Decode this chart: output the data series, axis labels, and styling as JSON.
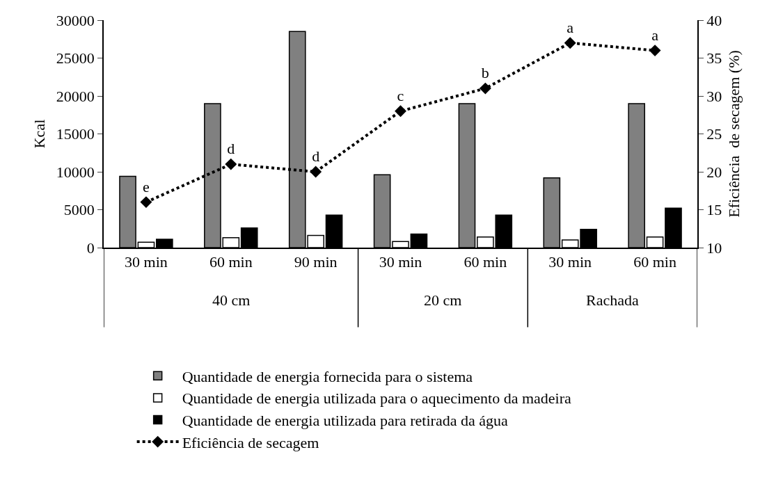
{
  "chart_data": {
    "type": "bar",
    "ylabel": "Kcal",
    "y2label": "Eficiência  de secagem (%)",
    "categories": [
      "30 min",
      "60 min",
      "90 min",
      "30 min",
      "60 min",
      "30 min",
      "60 min"
    ],
    "annotations": [
      "40 cm",
      "20 cm",
      "Rachada"
    ],
    "series": [
      {
        "name": "Quantidade de energia fornecida para o sistema",
        "color": "#808080",
        "values": [
          9400,
          19000,
          28500,
          9600,
          19000,
          9200,
          19000
        ]
      },
      {
        "name": "Quantidade de energia utilizada para o aquecimento da madeira",
        "color": "#ffffff",
        "values": [
          700,
          1300,
          1600,
          800,
          1400,
          1000,
          1400
        ]
      },
      {
        "name": "Quantidade de energia utilizada para retirada da água",
        "color": "#000000",
        "values": [
          1100,
          2600,
          4300,
          1800,
          4300,
          2400,
          5200
        ]
      },
      {
        "name": "Eficiência de secagem",
        "type": "line",
        "axis": "y2",
        "color": "#000000",
        "marker": "diamond",
        "line_style": "dotted",
        "values": [
          16,
          21,
          20,
          28,
          31,
          37,
          36
        ],
        "value_labels": [
          "e",
          "d",
          "d",
          "c",
          "b",
          "a",
          "a"
        ]
      }
    ],
    "ylim": [
      0,
      30000
    ],
    "yticks": [
      0,
      5000,
      10000,
      15000,
      20000,
      25000,
      30000
    ],
    "y2lim": [
      10,
      40
    ],
    "y2ticks": [
      10,
      15,
      20,
      25,
      30,
      35,
      40
    ],
    "legend": "bottom"
  }
}
